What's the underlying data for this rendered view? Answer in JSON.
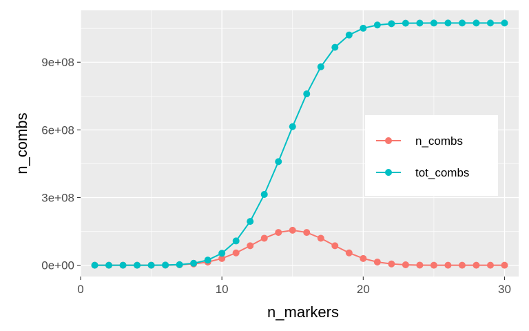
{
  "chart_data": {
    "type": "line",
    "xlabel": "n_markers",
    "ylabel": "n_combs",
    "xlim": [
      0,
      31
    ],
    "ylim": [
      -50000000,
      1130000000
    ],
    "x_ticks": [
      0,
      10,
      20,
      30
    ],
    "x_tick_labels": [
      "0",
      "10",
      "20",
      "30"
    ],
    "y_ticks": [
      0,
      300000000,
      600000000,
      900000000
    ],
    "y_tick_labels": [
      "0e+00",
      "3e+08",
      "6e+08",
      "9e+08"
    ],
    "grid": true,
    "legend_position": "right",
    "x": [
      1,
      2,
      3,
      4,
      5,
      6,
      7,
      8,
      9,
      10,
      11,
      12,
      13,
      14,
      15,
      16,
      17,
      18,
      19,
      20,
      21,
      22,
      23,
      24,
      25,
      26,
      27,
      28,
      29,
      30
    ],
    "series": [
      {
        "name": "n_combs",
        "color": "#F8766D",
        "values": [
          30,
          435,
          4060,
          27405,
          142506,
          593775,
          2035800,
          5852925,
          14307150,
          30045015,
          54627300,
          86493225,
          119759850,
          145422675,
          155117520,
          145422675,
          119759850,
          86493225,
          54627300,
          30045015,
          14307150,
          5852925,
          2035800,
          593775,
          142506,
          27405,
          4060,
          435,
          30,
          1
        ]
      },
      {
        "name": "tot_combs",
        "color": "#00BFC4",
        "values": [
          30,
          465,
          4525,
          31930,
          174436,
          768211,
          2804011,
          8656936,
          22964086,
          53009101,
          107636401,
          194129626,
          313889476,
          459312151,
          614429671,
          759852346,
          879612196,
          966105421,
          1020732721,
          1050777736,
          1065084886,
          1070937811,
          1072973611,
          1073567386,
          1073709892,
          1073737297,
          1073741357,
          1073741792,
          1073741822,
          1073741823
        ]
      }
    ]
  }
}
